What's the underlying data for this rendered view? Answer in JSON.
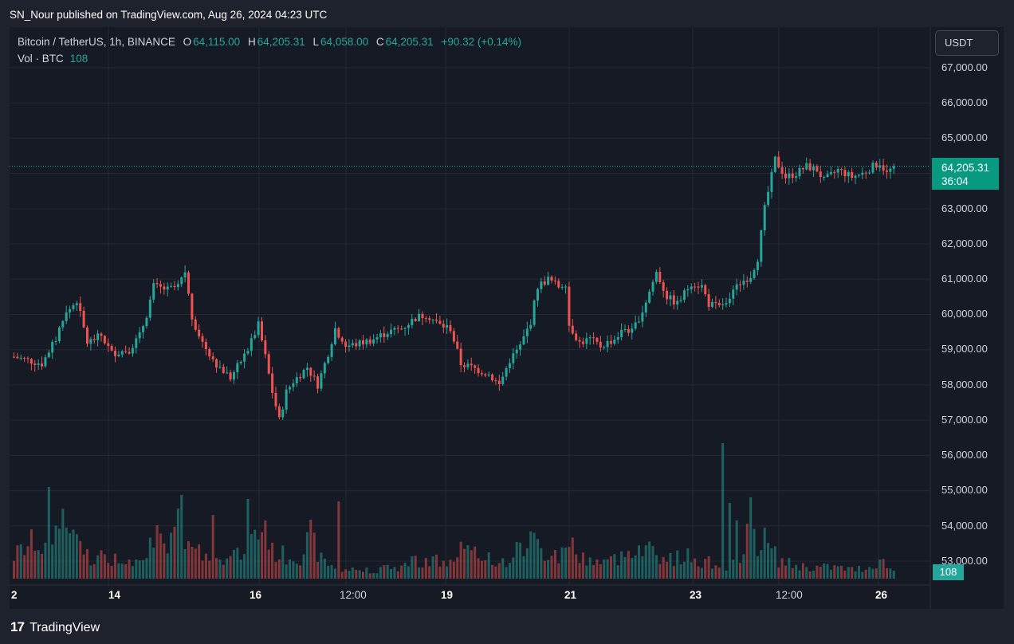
{
  "publication": "SN_Nour published on TradingView.com, Aug 26, 2024 04:23 UTC",
  "legend": {
    "symbol": "Bitcoin / TetherUS, 1h, BINANCE",
    "o_label": "O",
    "o_value": "64,115.00",
    "h_label": "H",
    "h_value": "64,205.31",
    "l_label": "L",
    "l_value": "64,058.00",
    "c_label": "C",
    "c_value": "64,205.31",
    "change": "+90.32 (+0.14%)",
    "volume_label": "Vol · BTC",
    "volume_value": "108"
  },
  "currency_button": "USDT",
  "price_axis": [
    "67,000.00",
    "66,000.00",
    "65,000.00",
    "63,000.00",
    "62,000.00",
    "61,000.00",
    "60,000.00",
    "59,000.00",
    "58,000.00",
    "57,000.00",
    "56,000.00",
    "55,000.00",
    "54,000.00",
    "53,000.00"
  ],
  "last_price": {
    "value": "64,205.31",
    "countdown": "36:04"
  },
  "volume_tag": "108",
  "time_axis": [
    {
      "label": "2",
      "bold": true
    },
    {
      "label": "14",
      "bold": true
    },
    {
      "label": "16",
      "bold": true
    },
    {
      "label": "12:00",
      "bold": false
    },
    {
      "label": "19",
      "bold": true
    },
    {
      "label": "21",
      "bold": true
    },
    {
      "label": "23",
      "bold": true
    },
    {
      "label": "12:00",
      "bold": false
    },
    {
      "label": "26",
      "bold": true
    }
  ],
  "brand": {
    "logo": "17",
    "name": "TradingView"
  },
  "colors": {
    "up": "#26a69a",
    "down": "#ef5350",
    "background": "#161a25",
    "frame": "#1e222d",
    "grid": "#242833"
  },
  "chart_data": {
    "type": "candlestick",
    "y_range": [
      52500,
      67500
    ],
    "keypoints": [
      [
        0,
        58800
      ],
      [
        4,
        58700
      ],
      [
        8,
        58600
      ],
      [
        12,
        59300
      ],
      [
        14,
        59900
      ],
      [
        18,
        60400
      ],
      [
        21,
        59200
      ],
      [
        25,
        59400
      ],
      [
        28,
        58900
      ],
      [
        33,
        59000
      ],
      [
        36,
        59400
      ],
      [
        38,
        60000
      ],
      [
        40,
        60800
      ],
      [
        44,
        60700
      ],
      [
        47,
        60800
      ],
      [
        49,
        61200
      ],
      [
        51,
        59900
      ],
      [
        54,
        59200
      ],
      [
        58,
        58600
      ],
      [
        62,
        58200
      ],
      [
        67,
        59000
      ],
      [
        70,
        59700
      ],
      [
        72,
        58800
      ],
      [
        74,
        57800
      ],
      [
        76,
        57000
      ],
      [
        78,
        57800
      ],
      [
        80,
        58100
      ],
      [
        84,
        58500
      ],
      [
        87,
        58000
      ],
      [
        90,
        58900
      ],
      [
        92,
        59600
      ],
      [
        95,
        59100
      ],
      [
        98,
        59150
      ],
      [
        103,
        59300
      ],
      [
        107,
        59500
      ],
      [
        111,
        59600
      ],
      [
        115,
        59900
      ],
      [
        118,
        60000
      ],
      [
        122,
        59700
      ],
      [
        125,
        59600
      ],
      [
        128,
        58600
      ],
      [
        131,
        58500
      ],
      [
        136,
        58300
      ],
      [
        139,
        58000
      ],
      [
        142,
        58700
      ],
      [
        145,
        59100
      ],
      [
        148,
        59800
      ],
      [
        150,
        60800
      ],
      [
        153,
        61000
      ],
      [
        156,
        60800
      ],
      [
        158,
        60900
      ],
      [
        159,
        59700
      ],
      [
        162,
        59200
      ],
      [
        165,
        59300
      ],
      [
        168,
        59100
      ],
      [
        172,
        59300
      ],
      [
        175,
        59600
      ],
      [
        177,
        59500
      ],
      [
        180,
        60100
      ],
      [
        184,
        61200
      ],
      [
        187,
        60500
      ],
      [
        190,
        60300
      ],
      [
        194,
        60900
      ],
      [
        197,
        60800
      ],
      [
        199,
        60300
      ],
      [
        202,
        60200
      ],
      [
        205,
        60500
      ],
      [
        208,
        60900
      ],
      [
        211,
        61100
      ],
      [
        213,
        61600
      ],
      [
        215,
        63000
      ],
      [
        218,
        64400
      ],
      [
        221,
        63900
      ],
      [
        224,
        64000
      ],
      [
        227,
        64200
      ],
      [
        230,
        64100
      ],
      [
        232,
        63800
      ],
      [
        236,
        64100
      ],
      [
        240,
        63900
      ],
      [
        243,
        64000
      ],
      [
        246,
        64200
      ],
      [
        248,
        64300
      ],
      [
        250,
        64000
      ],
      [
        252,
        64200
      ]
    ],
    "volume_keypoints": [
      [
        0,
        30
      ],
      [
        6,
        50
      ],
      [
        10,
        35
      ],
      [
        14,
        80
      ],
      [
        18,
        45
      ],
      [
        22,
        30
      ],
      [
        30,
        25
      ],
      [
        36,
        30
      ],
      [
        40,
        60
      ],
      [
        44,
        30
      ],
      [
        47,
        70
      ],
      [
        49,
        55
      ],
      [
        52,
        35
      ],
      [
        56,
        30
      ],
      [
        62,
        25
      ],
      [
        66,
        40
      ],
      [
        70,
        60
      ],
      [
        72,
        75
      ],
      [
        74,
        35
      ],
      [
        78,
        30
      ],
      [
        82,
        30
      ],
      [
        85,
        55
      ],
      [
        88,
        25
      ],
      [
        92,
        15
      ],
      [
        96,
        12
      ],
      [
        100,
        12
      ],
      [
        104,
        12
      ],
      [
        110,
        15
      ],
      [
        115,
        25
      ],
      [
        120,
        25
      ],
      [
        125,
        20
      ],
      [
        128,
        40
      ],
      [
        132,
        30
      ],
      [
        136,
        30
      ],
      [
        140,
        20
      ],
      [
        145,
        40
      ],
      [
        148,
        55
      ],
      [
        151,
        35
      ],
      [
        156,
        30
      ],
      [
        159,
        55
      ],
      [
        161,
        30
      ],
      [
        165,
        25
      ],
      [
        170,
        22
      ],
      [
        175,
        30
      ],
      [
        177,
        45
      ],
      [
        180,
        45
      ],
      [
        184,
        35
      ],
      [
        188,
        25
      ],
      [
        192,
        30
      ],
      [
        196,
        25
      ],
      [
        200,
        20
      ],
      [
        204,
        18
      ],
      [
        207,
        20
      ],
      [
        209,
        50
      ],
      [
        211,
        80
      ],
      [
        213,
        50
      ],
      [
        215,
        50
      ],
      [
        219,
        25
      ],
      [
        223,
        18
      ],
      [
        228,
        15
      ],
      [
        235,
        15
      ],
      [
        240,
        12
      ],
      [
        245,
        15
      ],
      [
        248,
        25
      ],
      [
        252,
        10
      ]
    ],
    "volume_spikes": [
      [
        10,
        115
      ],
      [
        48,
        105
      ],
      [
        57,
        80
      ],
      [
        67,
        100
      ],
      [
        93,
        97
      ],
      [
        203,
        170
      ],
      [
        205,
        95
      ],
      [
        207,
        73
      ]
    ]
  }
}
